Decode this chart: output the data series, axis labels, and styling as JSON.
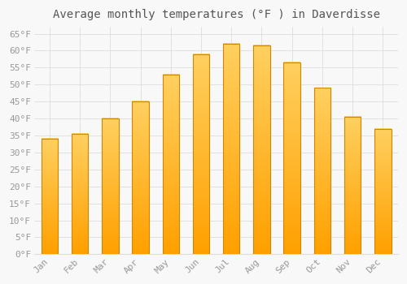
{
  "title": "Average monthly temperatures (°F ) in Daverdisse",
  "months": [
    "Jan",
    "Feb",
    "Mar",
    "Apr",
    "May",
    "Jun",
    "Jul",
    "Aug",
    "Sep",
    "Oct",
    "Nov",
    "Dec"
  ],
  "values": [
    34,
    35.5,
    40,
    45,
    53,
    59,
    62,
    61.5,
    56.5,
    49,
    40.5,
    37
  ],
  "bar_color_top": "#FFD060",
  "bar_color_bottom": "#FFA000",
  "bar_edge_color": "#CC8800",
  "background_color": "#F8F8F8",
  "grid_color": "#DDDDDD",
  "ylim": [
    0,
    67
  ],
  "yticks": [
    0,
    5,
    10,
    15,
    20,
    25,
    30,
    35,
    40,
    45,
    50,
    55,
    60,
    65
  ],
  "title_fontsize": 10,
  "tick_fontsize": 8,
  "tick_color": "#999999",
  "bar_width": 0.55
}
